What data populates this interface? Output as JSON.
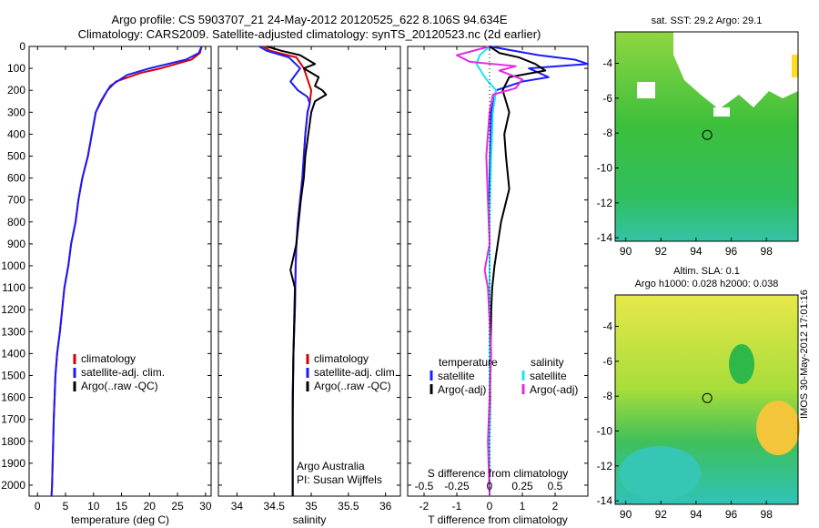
{
  "header": {
    "line1": "Argo profile: CS 5903707_21 24-May-2012 20120525_622 8.106S 94.634E",
    "line2": "Climatology: CARS2009. Satellite-adjusted climatology: synTS_20120523.nc (2d earlier)"
  },
  "colors": {
    "climatology": "#d40000",
    "satellite": "#1a1aff",
    "argo": "#000000",
    "sal_satellite": "#19e6ee",
    "sal_argo": "#e22be0"
  },
  "chart_data": [
    {
      "id": "temperature",
      "type": "line",
      "xlabel": "temperature (deg C)",
      "ylabel": "",
      "xlim": [
        -1.5,
        31
      ],
      "ylim": [
        2050,
        0
      ],
      "xticks": [
        0,
        5,
        10,
        15,
        20,
        25,
        30
      ],
      "yticks": [
        0,
        100,
        200,
        300,
        400,
        500,
        600,
        700,
        800,
        900,
        1000,
        1100,
        1200,
        1300,
        1400,
        1500,
        1600,
        1700,
        1800,
        1900,
        2000
      ],
      "legend": [
        "climatology",
        "satellite-adj. clim.",
        "Argo(..raw -QC)"
      ],
      "series": [
        {
          "name": "climatology",
          "color": "#d40000",
          "x": [
            29.3,
            29.0,
            27.5,
            22,
            18.5,
            14.0,
            12.5,
            11.4,
            10.4,
            9.7,
            9.0,
            8.0,
            7.3,
            6.8,
            6.0,
            5.5,
            4.8,
            4.4,
            4.0,
            3.5,
            3.2,
            2.9,
            2.7,
            2.6,
            2.5
          ],
          "y": [
            0,
            30,
            60,
            100,
            120,
            160,
            200,
            250,
            300,
            400,
            500,
            600,
            700,
            800,
            900,
            1000,
            1100,
            1200,
            1300,
            1400,
            1500,
            1700,
            1900,
            2000,
            2050
          ]
        },
        {
          "name": "satellite-adj. clim.",
          "color": "#1a1aff",
          "x": [
            29.3,
            28.8,
            26.5,
            20,
            16,
            13.0,
            12.0,
            11.3,
            10.4,
            9.7,
            9.0,
            8.0,
            7.3,
            6.8,
            6.0,
            5.5,
            4.8,
            4.4,
            4.0,
            3.5,
            3.2,
            2.9,
            2.7,
            2.6,
            2.5
          ],
          "y": [
            0,
            30,
            60,
            100,
            130,
            180,
            220,
            250,
            300,
            400,
            500,
            600,
            700,
            800,
            900,
            1000,
            1100,
            1200,
            1300,
            1400,
            1500,
            1700,
            1900,
            2000,
            2050
          ]
        }
      ]
    },
    {
      "id": "salinity",
      "type": "line",
      "xlabel": "salinity",
      "ylabel": "",
      "xlim": [
        33.75,
        36.2
      ],
      "ylim": [
        2050,
        0
      ],
      "xticks": [
        34,
        34.5,
        35,
        35.5,
        36
      ],
      "legend": [
        "climatology",
        "satellite-adj. clim.",
        "Argo(..raw -QC)"
      ],
      "series": [
        {
          "name": "climatology",
          "color": "#d40000",
          "x": [
            34.35,
            34.45,
            34.8,
            34.9,
            34.95,
            35.0,
            34.98,
            34.95,
            34.92,
            34.9,
            34.88,
            34.85,
            34.82,
            34.8,
            34.79,
            34.78,
            34.76,
            34.75,
            34.75,
            34.75
          ],
          "y": [
            0,
            20,
            50,
            100,
            150,
            200,
            260,
            300,
            400,
            500,
            600,
            700,
            800,
            900,
            1000,
            1200,
            1400,
            1600,
            1800,
            2050
          ]
        },
        {
          "name": "satellite-adj. clim.",
          "color": "#1a1aff",
          "x": [
            34.3,
            34.4,
            34.7,
            34.85,
            34.72,
            34.82,
            34.95,
            34.98,
            34.95,
            34.92,
            34.9,
            34.88,
            34.85,
            34.82,
            34.8,
            34.79,
            34.78,
            34.76,
            34.75,
            34.75,
            34.75
          ],
          "y": [
            0,
            20,
            50,
            100,
            160,
            200,
            230,
            260,
            300,
            400,
            500,
            600,
            700,
            800,
            900,
            1000,
            1200,
            1400,
            1600,
            1800,
            2050
          ]
        },
        {
          "name": "Argo(..raw -QC)",
          "color": "#000000",
          "x": [
            34.4,
            34.6,
            34.85,
            34.95,
            35.05,
            34.9,
            35.1,
            35.05,
            35.15,
            35.2,
            35.05,
            35.0,
            34.96,
            34.92,
            34.9,
            34.86,
            34.83,
            34.8,
            34.72,
            34.78,
            34.76,
            34.75,
            34.75
          ],
          "y": [
            0,
            20,
            40,
            60,
            80,
            100,
            140,
            180,
            200,
            220,
            250,
            300,
            400,
            500,
            600,
            700,
            800,
            900,
            1020,
            1100,
            1400,
            1700,
            2050
          ]
        }
      ],
      "annotations": [
        "Argo Australia",
        "PI: Susan Wijffels"
      ]
    },
    {
      "id": "difference",
      "type": "line",
      "xlabel": "T difference from climatology",
      "xlabel_top": "S difference from climatology",
      "xlim": [
        -2.5,
        3
      ],
      "ylim": [
        2050,
        0
      ],
      "xticks": [
        -2,
        -1,
        0,
        1,
        2
      ],
      "sticks_labels": [
        "-0.5",
        "-0.25",
        "0",
        "0.25",
        "0.5"
      ],
      "legend_temperature": {
        "title": "temperature",
        "items": [
          "satellite",
          "Argo(-adj)"
        ]
      },
      "legend_salinity": {
        "title": "salinity",
        "items": [
          "satellite",
          "Argo(-adj)"
        ]
      },
      "series": [
        {
          "name": "satellite",
          "group": "temperature",
          "color": "#1a1aff",
          "x": [
            0,
            1.5,
            2.6,
            3.0,
            1.2,
            1.8,
            1.0,
            0.2,
            0.05,
            0,
            0,
            0
          ],
          "y": [
            0,
            40,
            60,
            80,
            100,
            140,
            160,
            200,
            300,
            600,
            1200,
            2050
          ]
        },
        {
          "name": "Argo(-adj)",
          "group": "temperature",
          "color": "#000000",
          "x": [
            0,
            0.3,
            0.9,
            1.4,
            1.7,
            0.6,
            0.4,
            0.5,
            0.6,
            0.45,
            0.5,
            0.6,
            0.35,
            0.25,
            0.15,
            0.08,
            0.05,
            0.02,
            0.0,
            0.0
          ],
          "y": [
            0,
            30,
            50,
            80,
            110,
            140,
            200,
            250,
            300,
            400,
            500,
            650,
            800,
            900,
            1000,
            1100,
            1200,
            1500,
            1800,
            2050
          ]
        },
        {
          "name": "satellite",
          "group": "salinity",
          "color": "#19e6ee",
          "x": [
            0,
            -0.3,
            -0.4,
            -0.1,
            0.2,
            0.1,
            0.05,
            0,
            0,
            0
          ],
          "y": [
            0,
            40,
            80,
            150,
            200,
            300,
            500,
            800,
            1200,
            2050
          ]
        },
        {
          "name": "Argo(-adj)",
          "group": "salinity",
          "color": "#e22be0",
          "x": [
            0,
            -1.0,
            -0.6,
            0.8,
            0.3,
            1.0,
            0.8,
            0.1,
            0.0,
            -0.1,
            -0.05,
            0,
            -0.15,
            -0.05,
            0.05,
            -0.05,
            0
          ],
          "y": [
            0,
            40,
            70,
            90,
            110,
            150,
            190,
            220,
            300,
            500,
            700,
            900,
            1020,
            1100,
            1400,
            1800,
            2050
          ]
        }
      ]
    }
  ],
  "maps": [
    {
      "id": "sst",
      "title": "sat. SST: 29.2 Argo: 29.1",
      "xticks": [
        "90",
        "92",
        "94",
        "96",
        "98"
      ],
      "yticks": [
        "-4",
        "-6",
        "-8",
        "-10",
        "-12",
        "-14"
      ]
    },
    {
      "id": "sla",
      "title1": "Altim. SLA: 0.1",
      "title2": "Argo h1000: 0.028 h2000: 0.038",
      "xticks": [
        "90",
        "92",
        "94",
        "96",
        "98"
      ],
      "yticks": [
        "-4",
        "-6",
        "-8",
        "-10",
        "-12",
        "-14"
      ]
    }
  ],
  "footer": "IMOS 30-May-2012 17:01:16"
}
